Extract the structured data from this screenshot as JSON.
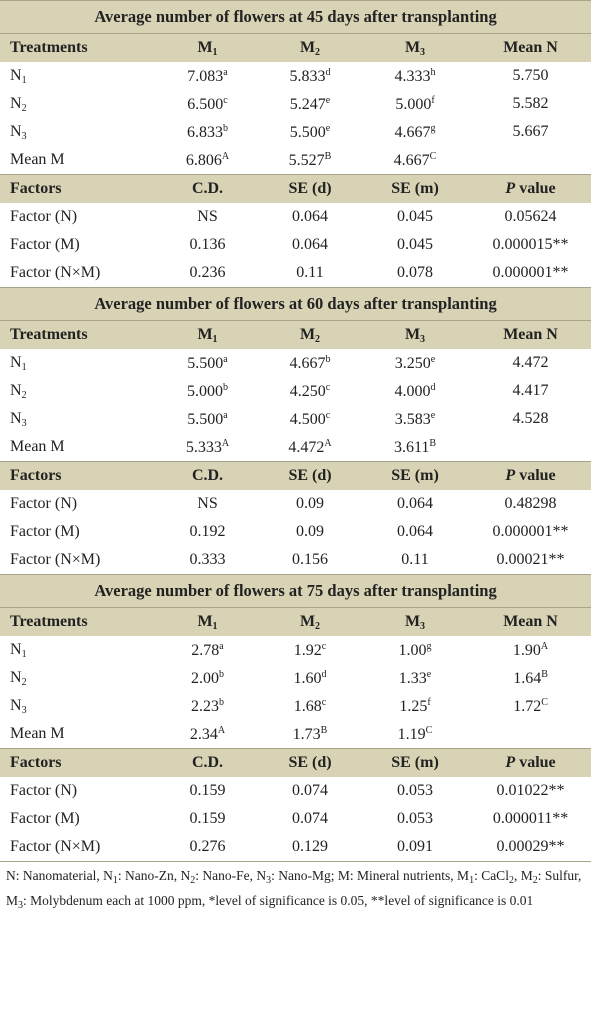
{
  "sections": [
    {
      "title": "Average number of flowers at 45 days after transplanting",
      "header": [
        "Treatments",
        [
          {
            "text": "M"
          },
          {
            "text": "1",
            "style": "sub"
          }
        ],
        [
          {
            "text": "M"
          },
          {
            "text": "2",
            "style": "sub"
          }
        ],
        [
          {
            "text": "M"
          },
          {
            "text": "3",
            "style": "sub"
          }
        ],
        "Mean N"
      ],
      "rows": [
        [
          [
            {
              "text": "N"
            },
            {
              "text": "1",
              "style": "sub"
            }
          ],
          [
            {
              "text": "7.083"
            },
            {
              "text": "a",
              "style": "sup"
            }
          ],
          [
            {
              "text": "5.833"
            },
            {
              "text": "d",
              "style": "sup"
            }
          ],
          [
            {
              "text": "4.333"
            },
            {
              "text": "h",
              "style": "sup"
            }
          ],
          "5.750"
        ],
        [
          [
            {
              "text": "N"
            },
            {
              "text": "2",
              "style": "sub"
            }
          ],
          [
            {
              "text": "6.500"
            },
            {
              "text": "c",
              "style": "sup"
            }
          ],
          [
            {
              "text": "5.247"
            },
            {
              "text": "e",
              "style": "sup"
            }
          ],
          [
            {
              "text": "5.000"
            },
            {
              "text": "f",
              "style": "sup"
            }
          ],
          "5.582"
        ],
        [
          [
            {
              "text": "N"
            },
            {
              "text": "3",
              "style": "sub"
            }
          ],
          [
            {
              "text": "6.833"
            },
            {
              "text": "b",
              "style": "sup"
            }
          ],
          [
            {
              "text": "5.500"
            },
            {
              "text": "e",
              "style": "sup"
            }
          ],
          [
            {
              "text": "4.667"
            },
            {
              "text": "g",
              "style": "sup"
            }
          ],
          "5.667"
        ],
        [
          "Mean M",
          [
            {
              "text": "6.806"
            },
            {
              "text": "A",
              "style": "sup"
            }
          ],
          [
            {
              "text": "5.527"
            },
            {
              "text": "B",
              "style": "sup"
            }
          ],
          [
            {
              "text": "4.667"
            },
            {
              "text": "C",
              "style": "sup"
            }
          ]
        ]
      ],
      "factor_header": [
        "Factors",
        "C.D.",
        "SE (d)",
        "SE (m)",
        [
          {
            "text": "P",
            "style": "i"
          },
          {
            "text": " value"
          }
        ]
      ],
      "factor_rows": [
        [
          "Factor (N)",
          "NS",
          "0.064",
          "0.045",
          "0.05624"
        ],
        [
          "Factor (M)",
          "0.136",
          "0.064",
          "0.045",
          "0.000015**"
        ],
        [
          "Factor (N×M)",
          "0.236",
          "0.11",
          "0.078",
          "0.000001**"
        ]
      ]
    },
    {
      "title": "Average number of flowers at 60 days after transplanting",
      "header": [
        "Treatments",
        [
          {
            "text": "M"
          },
          {
            "text": "1",
            "style": "sub"
          }
        ],
        [
          {
            "text": "M"
          },
          {
            "text": "2",
            "style": "sub"
          }
        ],
        [
          {
            "text": "M"
          },
          {
            "text": "3",
            "style": "sub"
          }
        ],
        "Mean N"
      ],
      "rows": [
        [
          [
            {
              "text": "N"
            },
            {
              "text": "1",
              "style": "sub"
            }
          ],
          [
            {
              "text": "5.500"
            },
            {
              "text": "a",
              "style": "sup"
            }
          ],
          [
            {
              "text": "4.667"
            },
            {
              "text": "b",
              "style": "sup"
            }
          ],
          [
            {
              "text": "3.250"
            },
            {
              "text": "e",
              "style": "sup"
            }
          ],
          "4.472"
        ],
        [
          [
            {
              "text": "N"
            },
            {
              "text": "2",
              "style": "sub"
            }
          ],
          [
            {
              "text": "5.000"
            },
            {
              "text": "b",
              "style": "sup"
            }
          ],
          [
            {
              "text": "4.250"
            },
            {
              "text": "c",
              "style": "sup"
            }
          ],
          [
            {
              "text": "4.000"
            },
            {
              "text": "d",
              "style": "sup"
            }
          ],
          "4.417"
        ],
        [
          [
            {
              "text": "N"
            },
            {
              "text": "3",
              "style": "sub"
            }
          ],
          [
            {
              "text": "5.500"
            },
            {
              "text": "a",
              "style": "sup"
            }
          ],
          [
            {
              "text": "4.500"
            },
            {
              "text": "c",
              "style": "sup"
            }
          ],
          [
            {
              "text": "3.583"
            },
            {
              "text": "e",
              "style": "sup"
            }
          ],
          "4.528"
        ],
        [
          "Mean M",
          [
            {
              "text": "5.333"
            },
            {
              "text": "A",
              "style": "sup"
            }
          ],
          [
            {
              "text": "4.472"
            },
            {
              "text": "A",
              "style": "sup"
            }
          ],
          [
            {
              "text": "3.611"
            },
            {
              "text": "B",
              "style": "sup"
            }
          ]
        ]
      ],
      "factor_header": [
        "Factors",
        "C.D.",
        "SE (d)",
        "SE (m)",
        [
          {
            "text": "P",
            "style": "i"
          },
          {
            "text": " value"
          }
        ]
      ],
      "factor_rows": [
        [
          "Factor (N)",
          "NS",
          "0.09",
          "0.064",
          "0.48298"
        ],
        [
          "Factor (M)",
          "0.192",
          "0.09",
          "0.064",
          "0.000001**"
        ],
        [
          "Factor (N×M)",
          "0.333",
          "0.156",
          "0.11",
          "0.00021**"
        ]
      ]
    },
    {
      "title": "Average number of flowers at 75 days after transplanting",
      "header": [
        "Treatments",
        [
          {
            "text": "M"
          },
          {
            "text": "1",
            "style": "sub"
          }
        ],
        [
          {
            "text": "M"
          },
          {
            "text": "2",
            "style": "sub"
          }
        ],
        [
          {
            "text": "M"
          },
          {
            "text": "3",
            "style": "sub"
          }
        ],
        "Mean N"
      ],
      "rows": [
        [
          [
            {
              "text": "N"
            },
            {
              "text": "1",
              "style": "sub"
            }
          ],
          [
            {
              "text": "2.78"
            },
            {
              "text": "a",
              "style": "sup"
            }
          ],
          [
            {
              "text": "1.92"
            },
            {
              "text": "c",
              "style": "sup"
            }
          ],
          [
            {
              "text": "1.00"
            },
            {
              "text": "g",
              "style": "sup"
            }
          ],
          [
            {
              "text": "1.90"
            },
            {
              "text": "A",
              "style": "sup"
            }
          ]
        ],
        [
          [
            {
              "text": "N"
            },
            {
              "text": "2",
              "style": "sub"
            }
          ],
          [
            {
              "text": "2.00"
            },
            {
              "text": "b",
              "style": "sup"
            }
          ],
          [
            {
              "text": "1.60"
            },
            {
              "text": "d",
              "style": "sup"
            }
          ],
          [
            {
              "text": "1.33"
            },
            {
              "text": "e",
              "style": "sup"
            }
          ],
          [
            {
              "text": "1.64"
            },
            {
              "text": "B",
              "style": "sup"
            }
          ]
        ],
        [
          [
            {
              "text": "N"
            },
            {
              "text": "3",
              "style": "sub"
            }
          ],
          [
            {
              "text": "2.23"
            },
            {
              "text": "b",
              "style": "sup"
            }
          ],
          [
            {
              "text": "1.68"
            },
            {
              "text": "c",
              "style": "sup"
            }
          ],
          [
            {
              "text": "1.25"
            },
            {
              "text": "f",
              "style": "sup"
            }
          ],
          [
            {
              "text": "1.72"
            },
            {
              "text": "C",
              "style": "sup"
            }
          ]
        ],
        [
          "Mean M",
          [
            {
              "text": "2.34"
            },
            {
              "text": "A",
              "style": "sup"
            }
          ],
          [
            {
              "text": "1.73"
            },
            {
              "text": "B",
              "style": "sup"
            }
          ],
          [
            {
              "text": "1.19"
            },
            {
              "text": "C",
              "style": "sup"
            }
          ]
        ]
      ],
      "factor_header": [
        "Factors",
        "C.D.",
        "SE (d)",
        "SE (m)",
        [
          {
            "text": "P",
            "style": "i"
          },
          {
            "text": " value"
          }
        ]
      ],
      "factor_rows": [
        [
          "Factor (N)",
          "0.159",
          "0.074",
          "0.053",
          "0.01022**"
        ],
        [
          "Factor (M)",
          "0.159",
          "0.074",
          "0.053",
          "0.000011**"
        ],
        [
          "Factor (N×M)",
          "0.276",
          "0.129",
          "0.091",
          "0.00029**"
        ]
      ]
    }
  ],
  "footnote": [
    {
      "text": "N: Nanomaterial, N"
    },
    {
      "text": "1",
      "style": "sub"
    },
    {
      "text": ": Nano-Zn, N"
    },
    {
      "text": "2",
      "style": "sub"
    },
    {
      "text": ": Nano-Fe, N"
    },
    {
      "text": "3",
      "style": "sub"
    },
    {
      "text": ": Nano-Mg; M: Mineral nutrients, M"
    },
    {
      "text": "1",
      "style": "sub"
    },
    {
      "text": ": CaCl"
    },
    {
      "text": "2",
      "style": "sub"
    },
    {
      "text": ", M"
    },
    {
      "text": "2",
      "style": "sub"
    },
    {
      "text": ": Sulfur, M"
    },
    {
      "text": "3",
      "style": "sub"
    },
    {
      "text": ": Molybdenum each at 1000 ppm, *level of significance is 0.05, **level of significance is 0.01"
    }
  ]
}
